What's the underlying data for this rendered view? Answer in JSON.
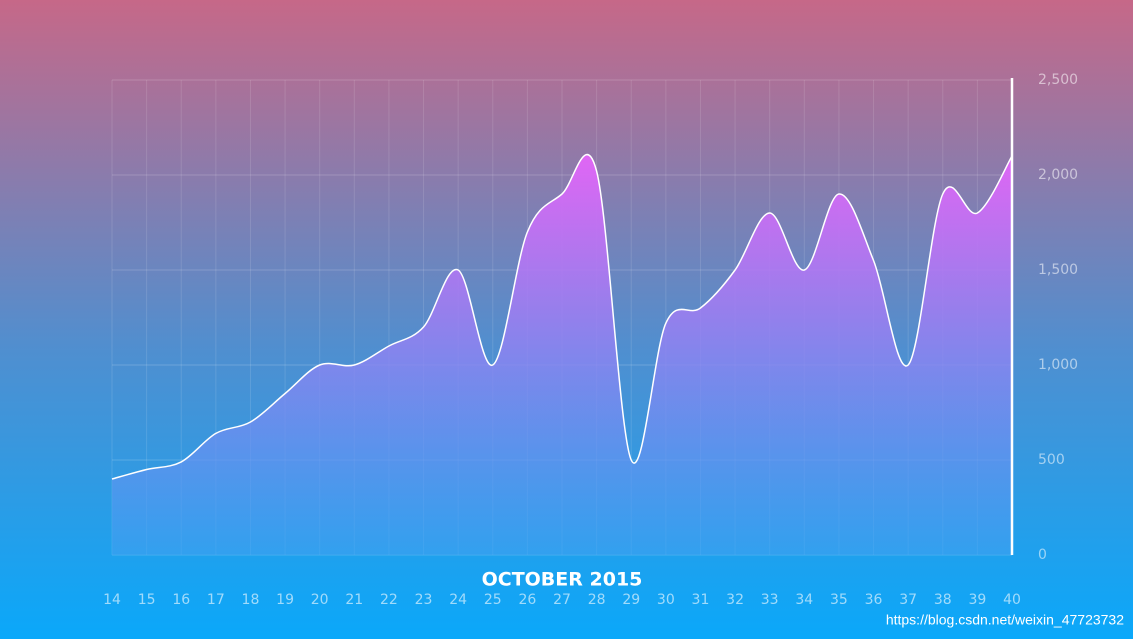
{
  "chart_data": {
    "type": "area",
    "x_label": "OCTOBER 2015",
    "watermark": "https://blog.csdn.net/weixin_47723732",
    "categories": [
      "14",
      "15",
      "16",
      "17",
      "18",
      "19",
      "20",
      "21",
      "22",
      "23",
      "24",
      "25",
      "26",
      "27",
      "28",
      "29",
      "30",
      "31",
      "32",
      "33",
      "34",
      "35",
      "36",
      "37",
      "38",
      "39",
      "40"
    ],
    "values": [
      400,
      450,
      490,
      640,
      700,
      850,
      1000,
      1000,
      1100,
      1200,
      1500,
      1000,
      1700,
      1900,
      2020,
      500,
      1220,
      1300,
      1500,
      1800,
      1500,
      1900,
      1550,
      1000,
      1900,
      1800,
      2100
    ],
    "color": "#e066f5",
    "ylim": [
      0,
      2500
    ],
    "yticks": [
      0,
      500,
      {
        "value": 1000,
        "label": "1,000"
      },
      {
        "value": 1500,
        "label": "1,500"
      },
      {
        "value": 2000,
        "label": "2,000"
      },
      {
        "value": 2500,
        "label": "2,500"
      }
    ],
    "grid": true
  }
}
